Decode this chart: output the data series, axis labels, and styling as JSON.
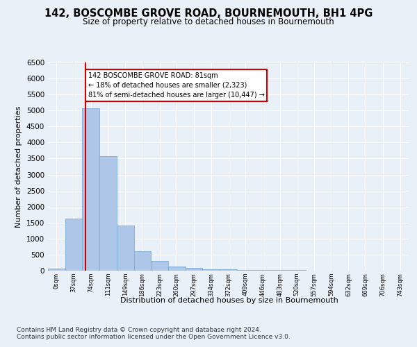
{
  "title": "142, BOSCOMBE GROVE ROAD, BOURNEMOUTH, BH1 4PG",
  "subtitle": "Size of property relative to detached houses in Bournemouth",
  "xlabel": "Distribution of detached houses by size in Bournemouth",
  "ylabel": "Number of detached properties",
  "bin_labels": [
    "0sqm",
    "37sqm",
    "74sqm",
    "111sqm",
    "149sqm",
    "186sqm",
    "223sqm",
    "260sqm",
    "297sqm",
    "334sqm",
    "372sqm",
    "409sqm",
    "446sqm",
    "483sqm",
    "520sqm",
    "557sqm",
    "594sqm",
    "632sqm",
    "669sqm",
    "706sqm",
    "743sqm"
  ],
  "bar_heights": [
    75,
    1620,
    5080,
    3580,
    1400,
    610,
    300,
    140,
    80,
    50,
    40,
    30,
    20,
    15,
    12,
    8,
    6,
    5,
    4,
    3,
    3
  ],
  "bar_color": "#aec6e8",
  "bar_edgecolor": "#7aadd4",
  "vline_x": 2.18,
  "vline_color": "#cc0000",
  "annotation_text": "142 BOSCOMBE GROVE ROAD: 81sqm\n← 18% of detached houses are smaller (2,323)\n81% of semi-detached houses are larger (10,447) →",
  "annotation_box_color": "#ffffff",
  "annotation_box_edgecolor": "#cc0000",
  "ylim": [
    0,
    6500
  ],
  "yticks": [
    0,
    500,
    1000,
    1500,
    2000,
    2500,
    3000,
    3500,
    4000,
    4500,
    5000,
    5500,
    6000,
    6500
  ],
  "footer1": "Contains HM Land Registry data © Crown copyright and database right 2024.",
  "footer2": "Contains public sector information licensed under the Open Government Licence v3.0.",
  "bg_color": "#eaf0f8",
  "plot_bg_color": "#eaf0f8"
}
